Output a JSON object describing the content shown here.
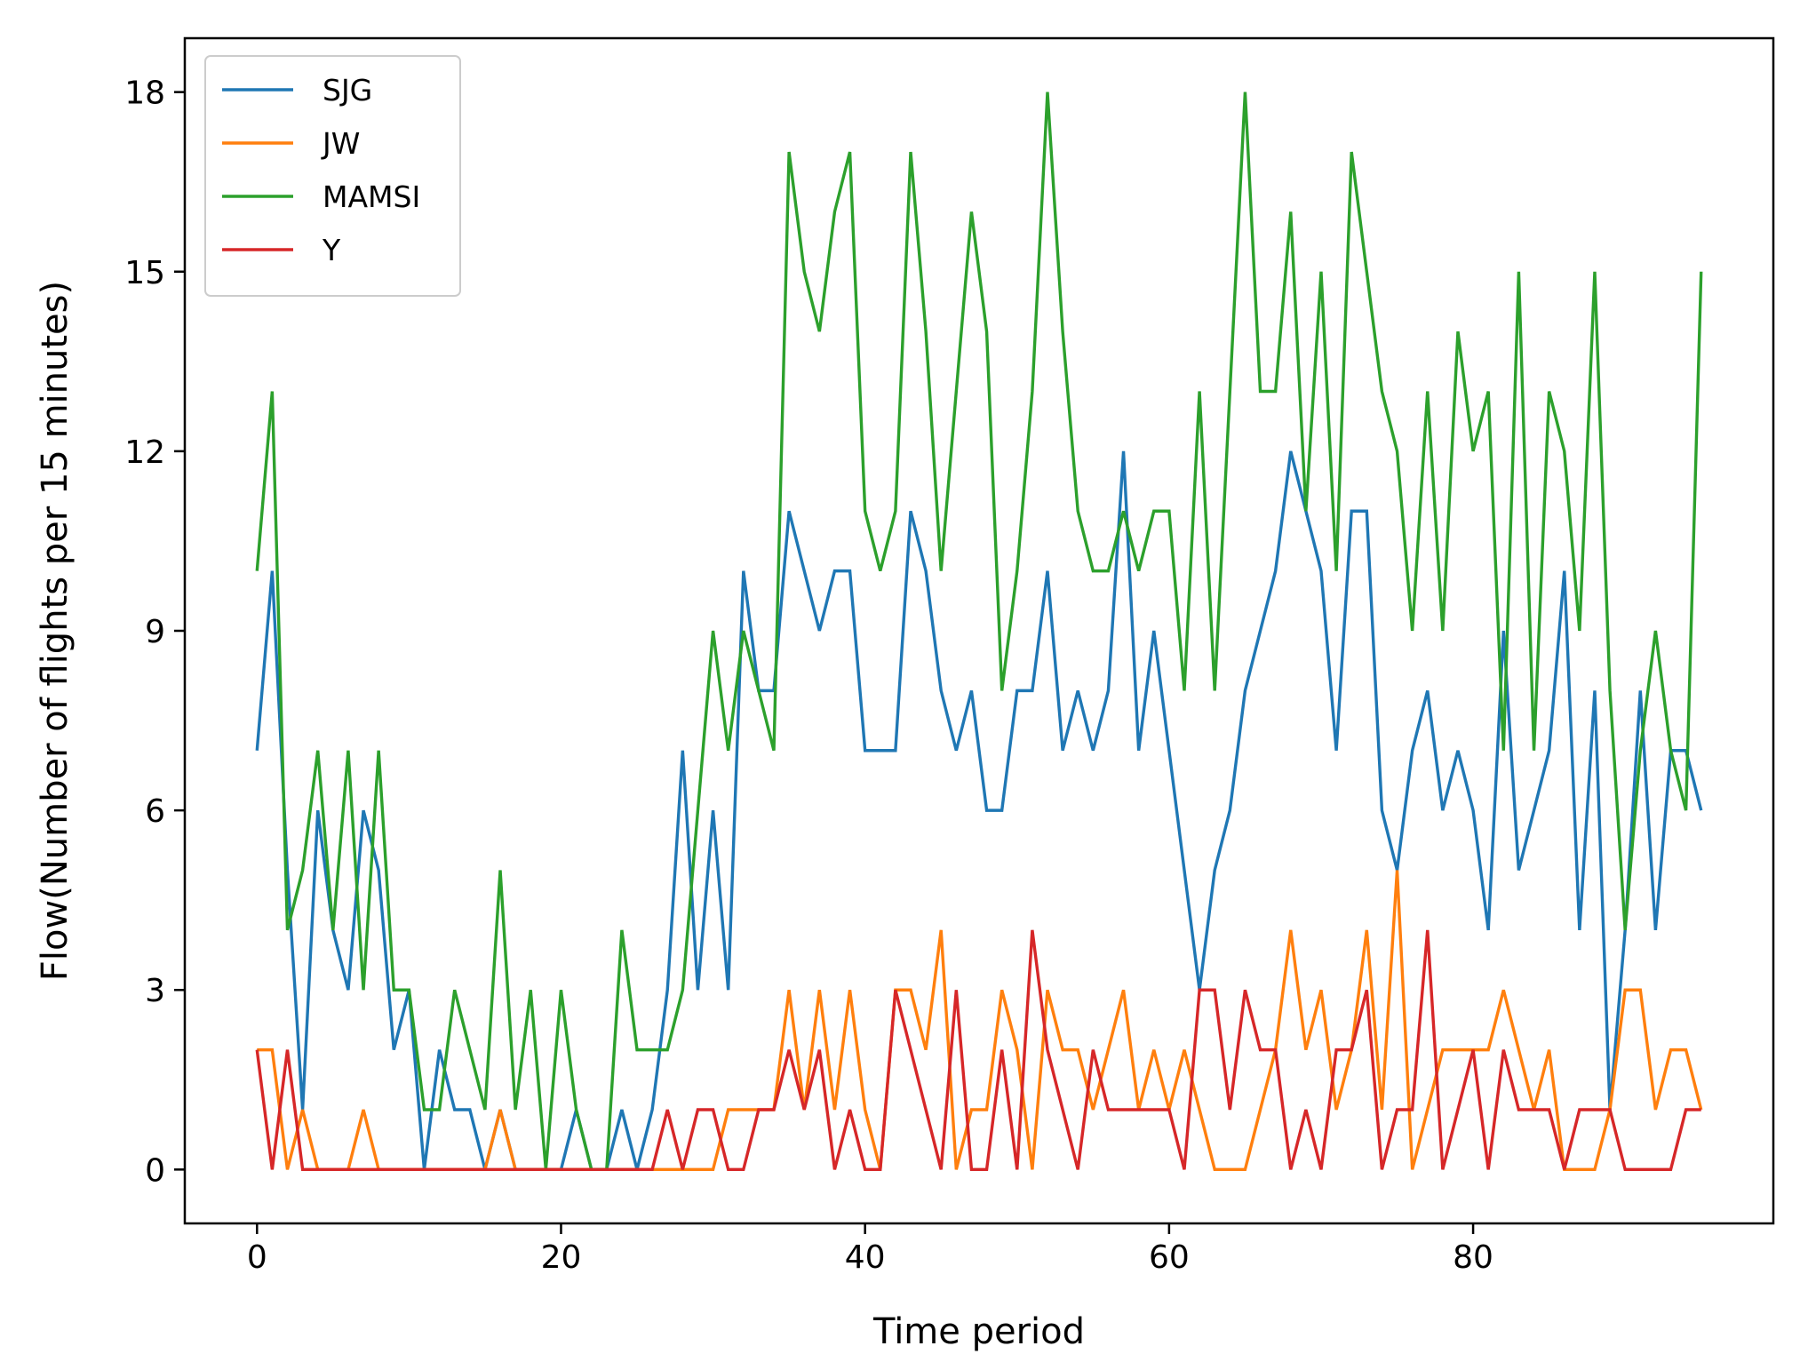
{
  "chart_data": {
    "type": "line",
    "title": "",
    "xlabel": "Time period",
    "ylabel": "Flow(Number of flights per 15 minutes)",
    "xlim": [
      -4.75,
      99.75
    ],
    "ylim": [
      -0.9,
      18.9
    ],
    "xticks": [
      0,
      20,
      40,
      60,
      80
    ],
    "yticks": [
      0,
      3,
      6,
      9,
      12,
      15,
      18
    ],
    "grid": false,
    "legend_position": "upper-left",
    "x": [
      0,
      1,
      2,
      3,
      4,
      5,
      6,
      7,
      8,
      9,
      10,
      11,
      12,
      13,
      14,
      15,
      16,
      17,
      18,
      19,
      20,
      21,
      22,
      23,
      24,
      25,
      26,
      27,
      28,
      29,
      30,
      31,
      32,
      33,
      34,
      35,
      36,
      37,
      38,
      39,
      40,
      41,
      42,
      43,
      44,
      45,
      46,
      47,
      48,
      49,
      50,
      51,
      52,
      53,
      54,
      55,
      56,
      57,
      58,
      59,
      60,
      61,
      62,
      63,
      64,
      65,
      66,
      67,
      68,
      69,
      70,
      71,
      72,
      73,
      74,
      75,
      76,
      77,
      78,
      79,
      80,
      81,
      82,
      83,
      84,
      85,
      86,
      87,
      88,
      89,
      90,
      91,
      92,
      93,
      94,
      95
    ],
    "series": [
      {
        "name": "SJG",
        "color": "#1f77b4",
        "values": [
          7,
          10,
          5,
          1,
          6,
          4,
          3,
          6,
          5,
          2,
          3,
          0,
          2,
          1,
          1,
          0,
          1,
          0,
          0,
          0,
          0,
          1,
          0,
          0,
          1,
          0,
          1,
          3,
          7,
          3,
          6,
          3,
          10,
          8,
          8,
          11,
          10,
          9,
          10,
          10,
          7,
          7,
          7,
          11,
          10,
          8,
          7,
          8,
          6,
          6,
          8,
          8,
          10,
          7,
          8,
          7,
          8,
          12,
          7,
          9,
          7,
          5,
          3,
          5,
          6,
          8,
          9,
          10,
          12,
          11,
          10,
          7,
          11,
          11,
          6,
          5,
          7,
          8,
          6,
          7,
          6,
          4,
          9,
          5,
          6,
          7,
          10,
          4,
          8,
          1,
          4,
          8,
          4,
          7,
          7,
          6
        ]
      },
      {
        "name": "JW",
        "color": "#ff7f0e",
        "values": [
          2,
          2,
          0,
          1,
          0,
          0,
          0,
          1,
          0,
          0,
          0,
          0,
          0,
          0,
          0,
          0,
          1,
          0,
          0,
          0,
          0,
          0,
          0,
          0,
          0,
          0,
          0,
          0,
          0,
          0,
          0,
          1,
          1,
          1,
          1,
          3,
          1,
          3,
          1,
          3,
          1,
          0,
          3,
          3,
          2,
          4,
          0,
          1,
          1,
          3,
          2,
          0,
          3,
          2,
          2,
          1,
          2,
          3,
          1,
          2,
          1,
          2,
          1,
          0,
          0,
          0,
          1,
          2,
          4,
          2,
          3,
          1,
          2,
          4,
          1,
          5,
          0,
          1,
          2,
          2,
          2,
          2,
          3,
          2,
          1,
          2,
          0,
          0,
          0,
          1,
          3,
          3,
          1,
          2,
          2,
          1
        ]
      },
      {
        "name": "MAMSI",
        "color": "#2ca02c",
        "values": [
          10,
          13,
          4,
          5,
          7,
          4,
          7,
          3,
          7,
          3,
          3,
          1,
          1,
          3,
          2,
          1,
          5,
          1,
          3,
          0,
          3,
          1,
          0,
          0,
          4,
          2,
          2,
          2,
          3,
          6,
          9,
          7,
          9,
          8,
          7,
          17,
          15,
          14,
          16,
          17,
          11,
          10,
          11,
          17,
          14,
          10,
          13,
          16,
          14,
          8,
          10,
          13,
          18,
          14,
          11,
          10,
          10,
          11,
          10,
          11,
          11,
          8,
          13,
          8,
          13,
          18,
          13,
          13,
          16,
          11,
          15,
          10,
          17,
          15,
          13,
          12,
          9,
          13,
          9,
          14,
          12,
          13,
          7,
          15,
          7,
          13,
          12,
          9,
          15,
          8,
          4,
          7,
          9,
          7,
          6,
          15
        ]
      },
      {
        "name": "Y",
        "color": "#d62728",
        "values": [
          2,
          0,
          2,
          0,
          0,
          0,
          0,
          0,
          0,
          0,
          0,
          0,
          0,
          0,
          0,
          0,
          0,
          0,
          0,
          0,
          0,
          0,
          0,
          0,
          0,
          0,
          0,
          1,
          0,
          1,
          1,
          0,
          0,
          1,
          1,
          2,
          1,
          2,
          0,
          1,
          0,
          0,
          3,
          2,
          1,
          0,
          3,
          0,
          0,
          2,
          0,
          4,
          2,
          1,
          0,
          2,
          1,
          1,
          1,
          1,
          1,
          0,
          3,
          3,
          1,
          3,
          2,
          2,
          0,
          1,
          0,
          2,
          2,
          3,
          0,
          1,
          1,
          4,
          0,
          1,
          2,
          0,
          2,
          1,
          1,
          1,
          0,
          1,
          1,
          1,
          0,
          0,
          0,
          0,
          1,
          1
        ]
      }
    ]
  }
}
